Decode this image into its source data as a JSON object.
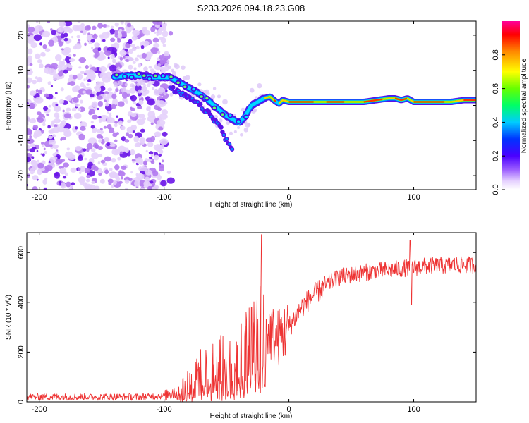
{
  "title": "S233.2026.094.18.23.G08",
  "chart_data": [
    {
      "type": "heatmap",
      "name": "spectrogram",
      "xlabel": "Height of straight line (km)",
      "ylabel": "Frequency (Hz)",
      "xlim": [
        -210,
        150
      ],
      "ylim": [
        -24,
        24
      ],
      "xticks": [
        -200,
        -100,
        0,
        100
      ],
      "yticks": [
        -20,
        -10,
        0,
        10,
        20
      ],
      "noise_region": {
        "x": [
          -210,
          -98
        ],
        "y": [
          -24,
          24
        ]
      },
      "ridge": {
        "x": [
          -140,
          -130,
          -120,
          -110,
          -100,
          -95,
          -90,
          -80,
          -70,
          -60,
          -50,
          -45,
          -40,
          -35,
          -30,
          -25,
          -20,
          -15,
          -12,
          -8,
          -5,
          0,
          10,
          20,
          30,
          40,
          50,
          60,
          70,
          80,
          85,
          90,
          95,
          100,
          110,
          120,
          130,
          140,
          150
        ],
        "y": [
          8,
          8.5,
          8.5,
          8,
          8,
          8,
          7,
          5,
          3,
          0,
          -3,
          -4,
          -5,
          -3,
          0,
          1,
          2,
          2.5,
          1.5,
          0.5,
          1.5,
          1,
          1,
          1,
          1,
          1,
          1,
          1,
          1.5,
          2,
          2,
          1.5,
          2,
          1,
          1,
          1,
          1,
          1.5,
          1.5
        ]
      },
      "branch": {
        "x": [
          -95,
          -85,
          -75,
          -65,
          -55,
          -50,
          -45
        ],
        "y": [
          5,
          3,
          1,
          -2,
          -6,
          -10,
          -13
        ]
      },
      "colorbar": {
        "label": "Normalized spectral amplitude",
        "range": [
          0,
          1
        ],
        "ticks": [
          0.0,
          0.2,
          0.4,
          0.6,
          0.8
        ],
        "tick_labels": [
          "0.0",
          "0.2",
          "0.4",
          "0.6",
          "0.8"
        ]
      }
    },
    {
      "type": "line",
      "name": "snr",
      "xlabel": "Height of straight line (km)",
      "ylabel": "SNR (10 * v/v)",
      "xlim": [
        -210,
        150
      ],
      "ylim": [
        0,
        680
      ],
      "xticks": [
        -200,
        -100,
        0,
        100
      ],
      "yticks": [
        0,
        200,
        400,
        600
      ],
      "color": "#ee3333",
      "envelope": {
        "x": [
          -210,
          -120,
          -100,
          -90,
          -80,
          -70,
          -60,
          -50,
          -40,
          -35,
          -30,
          -25,
          -20,
          -15,
          -10,
          -5,
          0,
          5,
          10,
          20,
          30,
          40,
          50,
          60,
          70,
          80,
          90,
          97,
          100,
          110,
          130,
          150
        ],
        "y": [
          20,
          20,
          25,
          45,
          80,
          120,
          140,
          150,
          165,
          200,
          230,
          260,
          290,
          280,
          255,
          270,
          300,
          340,
          380,
          430,
          470,
          500,
          510,
          520,
          525,
          530,
          535,
          540,
          540,
          545,
          550,
          550
        ]
      },
      "spikes": [
        {
          "x": -22,
          "y": 672
        },
        {
          "x": -30,
          "y": 380
        },
        {
          "x": -20,
          "y": 430
        },
        {
          "x": 97,
          "y": 650
        },
        {
          "x": 98,
          "y": 390
        }
      ]
    }
  ]
}
